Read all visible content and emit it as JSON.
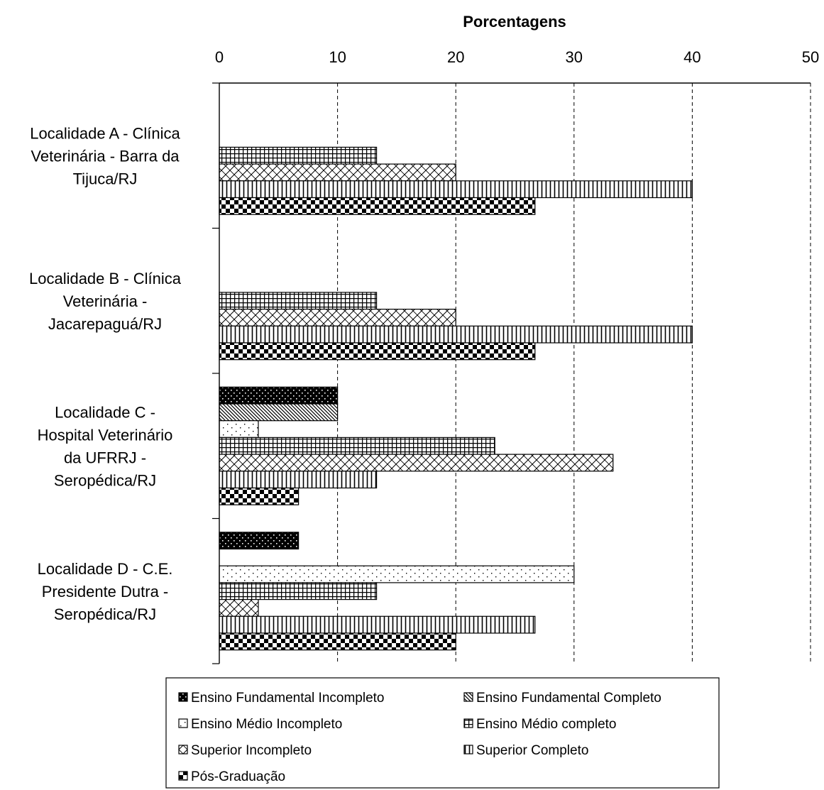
{
  "chart_data": {
    "type": "bar",
    "orientation": "horizontal",
    "xlabel": "Porcentagens",
    "xlim": [
      0,
      50
    ],
    "xticks": [
      0,
      10,
      20,
      30,
      40,
      50
    ],
    "grid": "vertical dashed",
    "legend_position": "bottom",
    "categories": [
      [
        "Localidade A - Clínica",
        "Veterinária - Barra da",
        "Tijuca/RJ"
      ],
      [
        "Localidade B - Clínica",
        "Veterinária -",
        "Jacarepaguá/RJ"
      ],
      [
        "Localidade C -",
        "Hospital Veterinário",
        "da UFRRJ -",
        "Seropédica/RJ"
      ],
      [
        "Localidade D - C.E.",
        "Presidente Dutra -",
        "Seropédica/RJ"
      ]
    ],
    "series": [
      {
        "name": "Ensino Fundamental Incompleto",
        "pattern": "dots-on-black",
        "values": [
          0,
          0,
          10,
          6.7
        ]
      },
      {
        "name": "Ensino Fundamental Completo",
        "pattern": "diagonal-fine",
        "values": [
          0,
          0,
          10,
          0
        ]
      },
      {
        "name": "Ensino Médio Incompleto",
        "pattern": "sparse-dots",
        "values": [
          0,
          0,
          3.3,
          30
        ]
      },
      {
        "name": "Ensino Médio completo",
        "pattern": "grid",
        "values": [
          13.3,
          13.3,
          23.3,
          13.3
        ]
      },
      {
        "name": "Superior Incompleto",
        "pattern": "diagonal-cross",
        "values": [
          20,
          20,
          33.3,
          3.3
        ]
      },
      {
        "name": "Superior Completo",
        "pattern": "vertical-lines",
        "values": [
          40,
          40,
          13.3,
          26.7
        ]
      },
      {
        "name": "Pós-Graduação",
        "pattern": "checkerboard",
        "values": [
          26.7,
          26.7,
          6.7,
          20
        ]
      }
    ]
  }
}
